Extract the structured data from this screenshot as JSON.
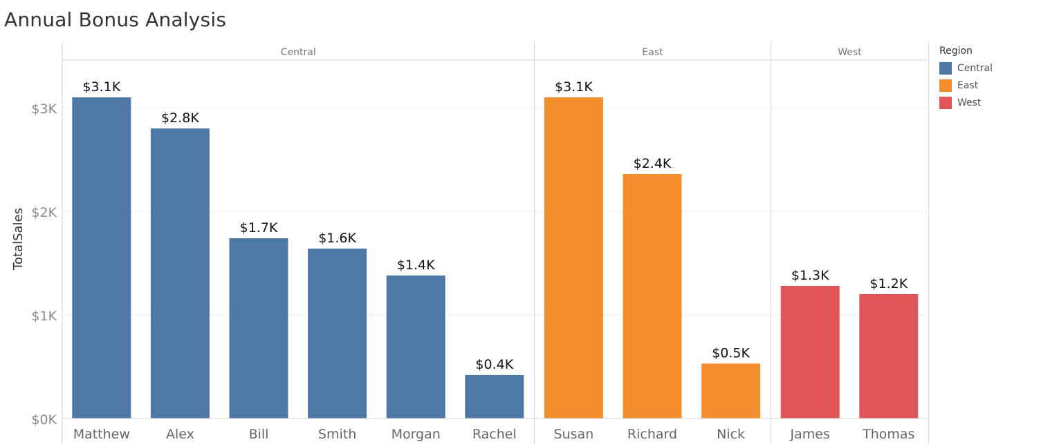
{
  "title": "Annual Bonus Analysis",
  "colors": {
    "Central": "#4e79a7",
    "East": "#f28e2b",
    "West": "#e15759"
  },
  "chart_data": {
    "type": "bar",
    "title": "Annual Bonus Analysis",
    "xlabel": "",
    "ylabel": "TotalSales",
    "ylim": [
      0,
      3500
    ],
    "yticks": [
      {
        "value": 0,
        "label": "$0K"
      },
      {
        "value": 1000,
        "label": "$1K"
      },
      {
        "value": 2000,
        "label": "$2K"
      },
      {
        "value": 3000,
        "label": "$3K"
      }
    ],
    "grid": true,
    "legend_position": "right",
    "legend_title": "Region",
    "legend": [
      "Central",
      "East",
      "West"
    ],
    "panels": [
      {
        "region": "Central",
        "bars": [
          {
            "category": "Matthew",
            "value": 3100,
            "label": "$3.1K"
          },
          {
            "category": "Alex",
            "value": 2800,
            "label": "$2.8K"
          },
          {
            "category": "Bill",
            "value": 1740,
            "label": "$1.7K"
          },
          {
            "category": "Smith",
            "value": 1640,
            "label": "$1.6K"
          },
          {
            "category": "Morgan",
            "value": 1380,
            "label": "$1.4K"
          },
          {
            "category": "Rachel",
            "value": 420,
            "label": "$0.4K"
          }
        ]
      },
      {
        "region": "East",
        "bars": [
          {
            "category": "Susan",
            "value": 3100,
            "label": "$3.1K"
          },
          {
            "category": "Richard",
            "value": 2360,
            "label": "$2.4K"
          },
          {
            "category": "Nick",
            "value": 530,
            "label": "$0.5K"
          }
        ]
      },
      {
        "region": "West",
        "bars": [
          {
            "category": "James",
            "value": 1280,
            "label": "$1.3K"
          },
          {
            "category": "Thomas",
            "value": 1200,
            "label": "$1.2K"
          }
        ]
      }
    ]
  }
}
